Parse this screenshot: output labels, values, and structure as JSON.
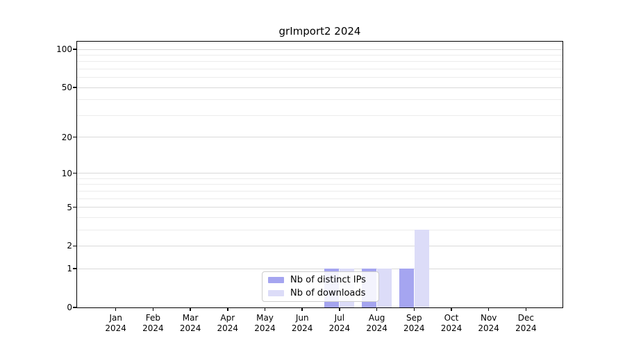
{
  "chart_data": {
    "type": "bar",
    "title": "grImport2 2024",
    "categories": [
      "Jan 2024",
      "Feb 2024",
      "Mar 2024",
      "Apr 2024",
      "May 2024",
      "Jun 2024",
      "Jul 2024",
      "Aug 2024",
      "Sep 2024",
      "Oct 2024",
      "Nov 2024",
      "Dec 2024"
    ],
    "month_labels": [
      "Jan",
      "Feb",
      "Mar",
      "Apr",
      "May",
      "Jun",
      "Jul",
      "Aug",
      "Sep",
      "Oct",
      "Nov",
      "Dec"
    ],
    "year_label": "2024",
    "series": [
      {
        "name": "Nb of distinct IPs",
        "color": "#a5a5f0",
        "values": [
          0,
          0,
          0,
          0,
          0,
          0,
          1,
          1,
          1,
          0,
          0,
          0
        ]
      },
      {
        "name": "Nb of downloads",
        "color": "#dcdcf8",
        "values": [
          0,
          0,
          0,
          0,
          0,
          0,
          1,
          1,
          3,
          0,
          0,
          0
        ]
      }
    ],
    "y_axis": {
      "scale": "log10(1+x)",
      "tick_values": [
        0,
        1,
        2,
        5,
        10,
        20,
        50,
        100
      ],
      "tick_labels": [
        "0",
        "1",
        "2",
        "5",
        "10",
        "20",
        "50",
        "100"
      ],
      "minor_gridline_values": [
        3,
        4,
        6,
        7,
        8,
        9,
        30,
        40,
        60,
        70,
        80,
        90
      ],
      "ylim": [
        0,
        110
      ]
    },
    "legend": {
      "position": "lower center",
      "entries": [
        "Nb of distinct IPs",
        "Nb of downloads"
      ]
    },
    "grid": true,
    "colors": {
      "background": "#ffffff",
      "axis": "#000000",
      "major_grid": "#d9d9d9",
      "minor_grid": "#ececec",
      "legend_border": "#cccccc"
    }
  }
}
